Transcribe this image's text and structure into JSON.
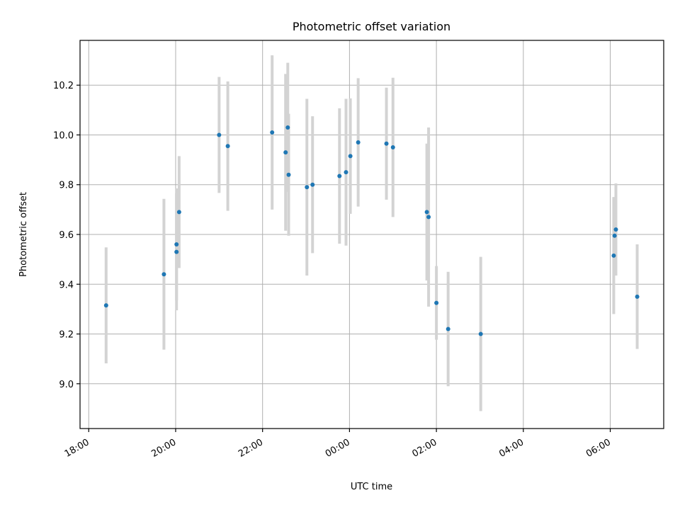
{
  "chart_data": {
    "type": "scatter",
    "title": "Photometric offset variation",
    "xlabel": "UTC time",
    "ylabel": "Photometric offset",
    "x_tick_labels": [
      "18:00",
      "20:00",
      "22:00",
      "00:00",
      "02:00",
      "04:00",
      "06:00"
    ],
    "x_tick_hours": [
      18,
      20,
      22,
      24,
      26,
      28,
      30
    ],
    "x_range_hours": [
      17.8,
      31.23
    ],
    "y_ticks": [
      9.0,
      9.2,
      9.4,
      9.6,
      9.8,
      10.0,
      10.2
    ],
    "y_tick_labels": [
      "9.0",
      "9.2",
      "9.4",
      "9.6",
      "9.8",
      "10.0",
      "10.2"
    ],
    "ylim": [
      8.82,
      10.38
    ],
    "grid": true,
    "colors": {
      "point": "#1f77b4",
      "errorbar": "#d3d3d3"
    },
    "points": [
      {
        "t": 18.4,
        "y": 9.315,
        "err": 0.233
      },
      {
        "t": 19.73,
        "y": 9.44,
        "err": 0.303
      },
      {
        "t": 20.02,
        "y": 9.56,
        "err": 0.225
      },
      {
        "t": 20.02,
        "y": 9.53,
        "err": 0.235
      },
      {
        "t": 20.08,
        "y": 9.69,
        "err": 0.225
      },
      {
        "t": 21.0,
        "y": 10.0,
        "err": 0.233
      },
      {
        "t": 21.2,
        "y": 9.955,
        "err": 0.26
      },
      {
        "t": 22.22,
        "y": 10.01,
        "err": 0.31
      },
      {
        "t": 22.53,
        "y": 9.93,
        "err": 0.315
      },
      {
        "t": 22.58,
        "y": 10.03,
        "err": 0.26
      },
      {
        "t": 22.6,
        "y": 9.84,
        "err": 0.245
      },
      {
        "t": 23.02,
        "y": 9.79,
        "err": 0.355
      },
      {
        "t": 23.15,
        "y": 9.8,
        "err": 0.275
      },
      {
        "t": 23.77,
        "y": 9.835,
        "err": 0.272
      },
      {
        "t": 23.92,
        "y": 9.85,
        "err": 0.295
      },
      {
        "t": 24.02,
        "y": 9.915,
        "err": 0.232
      },
      {
        "t": 24.2,
        "y": 9.97,
        "err": 0.258
      },
      {
        "t": 24.85,
        "y": 9.965,
        "err": 0.225
      },
      {
        "t": 25.0,
        "y": 9.95,
        "err": 0.28
      },
      {
        "t": 25.78,
        "y": 9.69,
        "err": 0.275
      },
      {
        "t": 25.82,
        "y": 9.67,
        "err": 0.36
      },
      {
        "t": 26.0,
        "y": 9.325,
        "err": 0.148
      },
      {
        "t": 26.27,
        "y": 9.22,
        "err": 0.23
      },
      {
        "t": 27.02,
        "y": 9.2,
        "err": 0.31
      },
      {
        "t": 30.08,
        "y": 9.515,
        "err": 0.235
      },
      {
        "t": 30.1,
        "y": 9.595,
        "err": 0.155
      },
      {
        "t": 30.13,
        "y": 9.62,
        "err": 0.185
      },
      {
        "t": 30.62,
        "y": 9.35,
        "err": 0.21
      }
    ]
  }
}
